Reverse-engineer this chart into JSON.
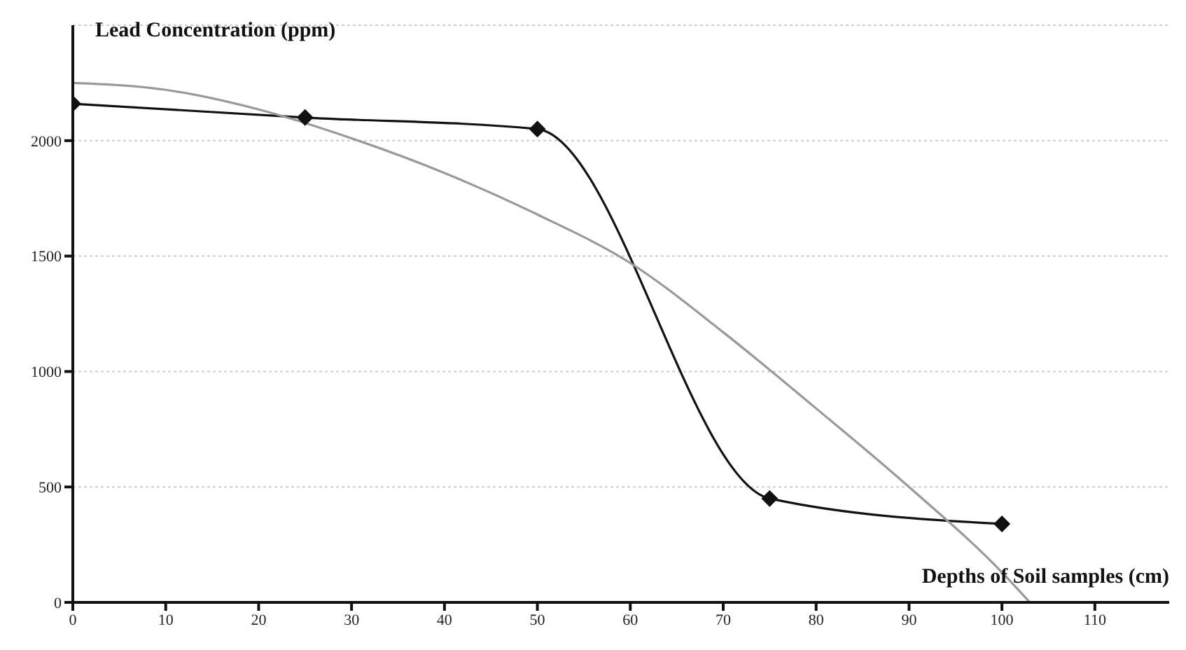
{
  "chart_data": {
    "type": "line",
    "xlabel": "Depths of Soil samples (cm)",
    "ylabel": "Lead Concentration (ppm)",
    "x": [
      0,
      25,
      50,
      75,
      100
    ],
    "series": [
      {
        "color": "#111111",
        "values": [
          2160,
          2100,
          2050,
          450,
          340
        ],
        "marker": "diamond"
      },
      {
        "color": "#999999",
        "x": [
          0,
          10,
          20,
          30,
          40,
          50,
          60,
          70,
          80,
          90,
          100,
          103
        ],
        "values": [
          2250,
          2220,
          2135,
          2010,
          1860,
          1680,
          1470,
          1170,
          840,
          500,
          130,
          0
        ],
        "marker": "none"
      }
    ],
    "xlim": [
      0,
      118
    ],
    "xticks": [
      0,
      10,
      20,
      30,
      40,
      50,
      60,
      70,
      80,
      90,
      100,
      110
    ],
    "ylim": [
      0,
      2500
    ],
    "yticks": [
      0,
      500,
      1000,
      1500,
      2000
    ],
    "grid": "y",
    "line_style": "solid"
  }
}
